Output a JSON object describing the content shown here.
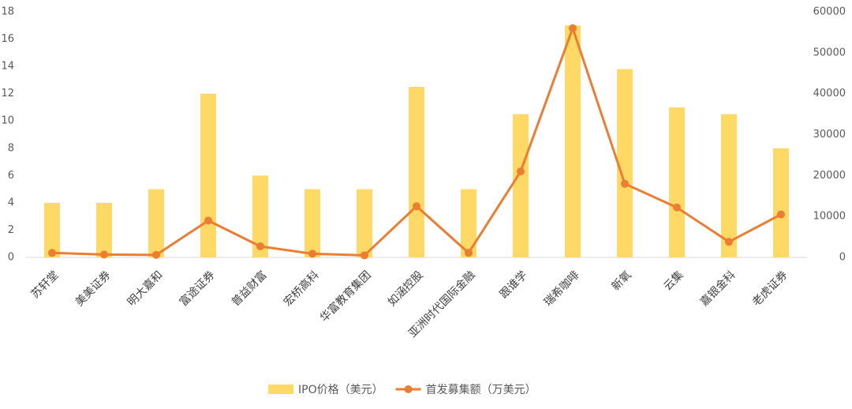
{
  "chart_data": {
    "type": "bar",
    "categories": [
      "苏轩堂",
      "美美证券",
      "明大嘉和",
      "富途证券",
      "普益财富",
      "宏桥高科",
      "华富教育集团",
      "如涵控股",
      "亚洲时代国际金融",
      "跟谁学",
      "瑞希咖啡",
      "新氧",
      "云集",
      "嘉银金科",
      "老虎证券"
    ],
    "series": [
      {
        "name": "IPO价格（美元）",
        "type": "bar",
        "color": "#ffd966",
        "values": [
          4,
          4,
          5,
          12,
          6,
          5,
          5,
          12.5,
          5,
          10.5,
          17,
          13.8,
          11,
          10.5,
          8
        ]
      },
      {
        "name": "首发募集额（万美元）",
        "type": "line",
        "axis": "y2",
        "color": "#ed7d31",
        "values": [
          1100,
          700,
          600,
          9000,
          2700,
          900,
          500,
          12500,
          1100,
          21000,
          56000,
          18000,
          12200,
          3800,
          10500
        ]
      }
    ],
    "ylim": [
      0,
      18
    ],
    "yticks": [
      0,
      2,
      4,
      6,
      8,
      10,
      12,
      14,
      16,
      18
    ],
    "y2lim": [
      0,
      60000
    ],
    "y2ticks": [
      0,
      10000,
      20000,
      30000,
      40000,
      50000,
      60000
    ]
  }
}
